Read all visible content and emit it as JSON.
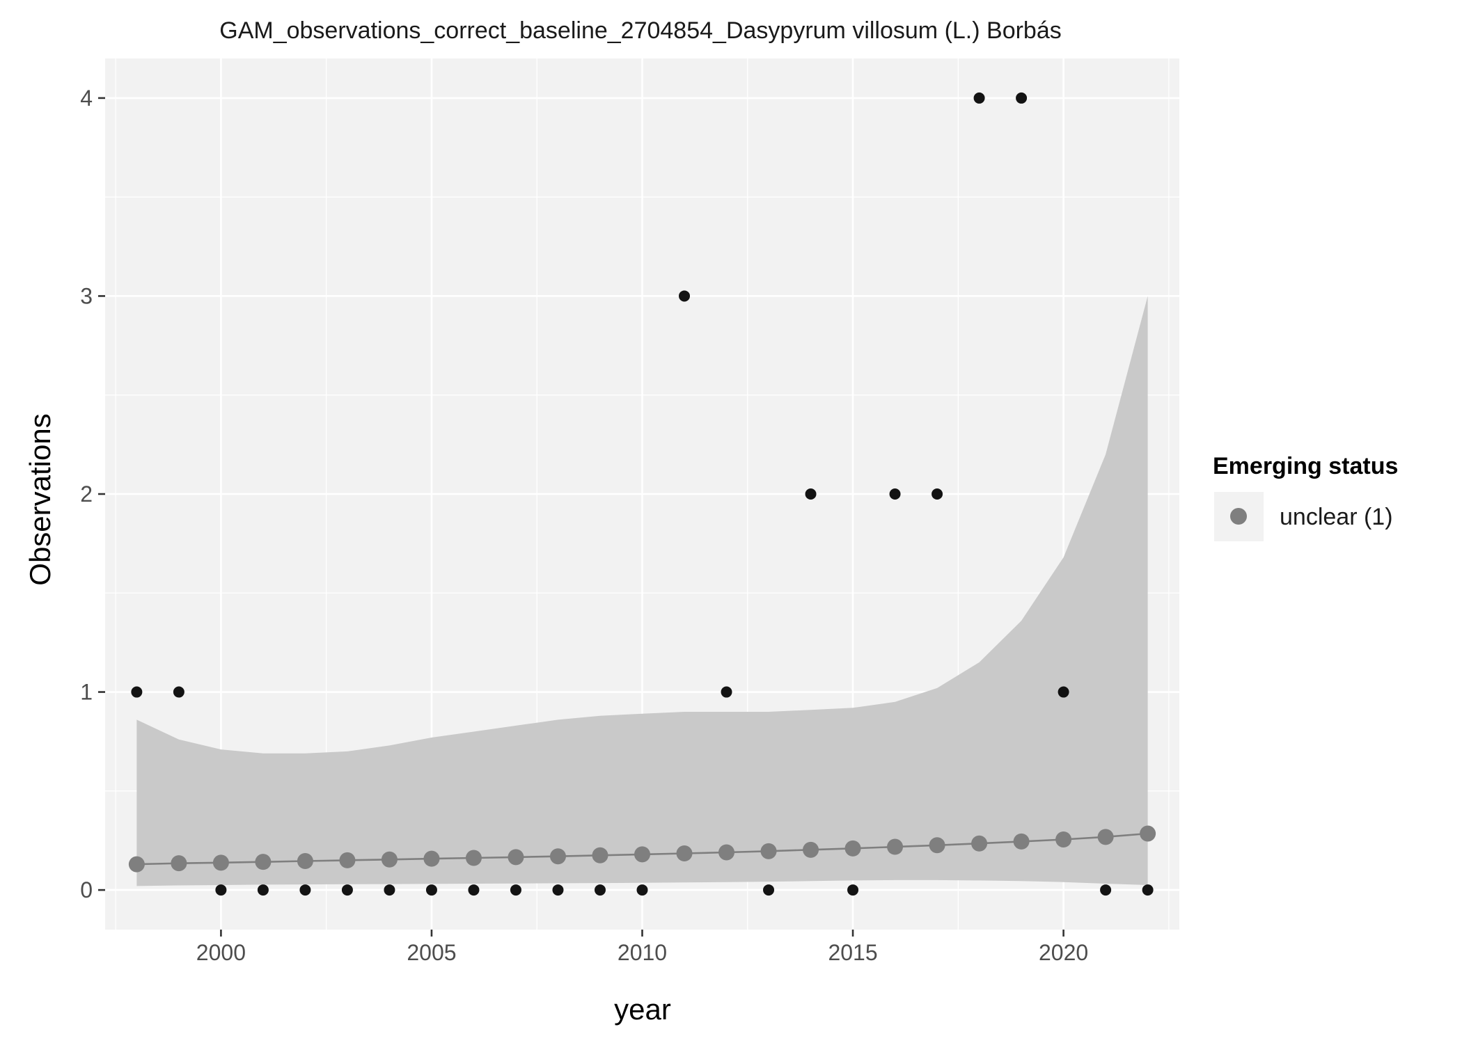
{
  "chart_data": {
    "type": "scatter",
    "title": "GAM_observations_correct_baseline_2704854_Dasypyrum villosum (L.) Borbás",
    "xlabel": "year",
    "ylabel": "Observations",
    "xlim": [
      1997.25,
      2022.75
    ],
    "ylim": [
      -0.2,
      4.2
    ],
    "x_ticks": [
      2000,
      2005,
      2010,
      2015,
      2020
    ],
    "y_ticks": [
      0,
      1,
      2,
      3,
      4
    ],
    "grid": true,
    "legend": {
      "title": "Emerging status",
      "placement": "right",
      "entries": [
        {
          "label": "unclear (1)",
          "color": "#7f7f7f"
        }
      ]
    },
    "observations": {
      "color": "#000000",
      "x": [
        1998,
        1999,
        2000,
        2001,
        2002,
        2003,
        2004,
        2005,
        2006,
        2007,
        2008,
        2009,
        2010,
        2011,
        2012,
        2013,
        2014,
        2015,
        2016,
        2017,
        2018,
        2019,
        2020,
        2021,
        2022
      ],
      "y": [
        1,
        1,
        0,
        0,
        0,
        0,
        0,
        0,
        0,
        0,
        0,
        0,
        0,
        3,
        1,
        0,
        2,
        0,
        2,
        2,
        4,
        4,
        1,
        0,
        0
      ]
    },
    "fit": {
      "name": "unclear (1)",
      "color": "#7f7f7f",
      "ribbon_color": "#c6c6c6",
      "x": [
        1998,
        1999,
        2000,
        2001,
        2002,
        2003,
        2004,
        2005,
        2006,
        2007,
        2008,
        2009,
        2010,
        2011,
        2012,
        2013,
        2014,
        2015,
        2016,
        2017,
        2018,
        2019,
        2020,
        2021,
        2022
      ],
      "y": [
        0.13,
        0.135,
        0.138,
        0.142,
        0.146,
        0.15,
        0.154,
        0.158,
        0.162,
        0.166,
        0.17,
        0.175,
        0.18,
        0.185,
        0.19,
        0.196,
        0.203,
        0.21,
        0.218,
        0.226,
        0.235,
        0.245,
        0.255,
        0.268,
        0.285
      ],
      "lower": [
        0.02,
        0.023,
        0.025,
        0.027,
        0.028,
        0.029,
        0.03,
        0.031,
        0.032,
        0.033,
        0.034,
        0.035,
        0.036,
        0.038,
        0.04,
        0.042,
        0.045,
        0.048,
        0.05,
        0.05,
        0.048,
        0.045,
        0.04,
        0.032,
        0.025
      ],
      "upper": [
        0.86,
        0.76,
        0.71,
        0.69,
        0.69,
        0.7,
        0.73,
        0.77,
        0.8,
        0.83,
        0.86,
        0.88,
        0.89,
        0.9,
        0.9,
        0.9,
        0.91,
        0.92,
        0.95,
        1.02,
        1.15,
        1.36,
        1.68,
        2.2,
        3.0
      ]
    }
  }
}
